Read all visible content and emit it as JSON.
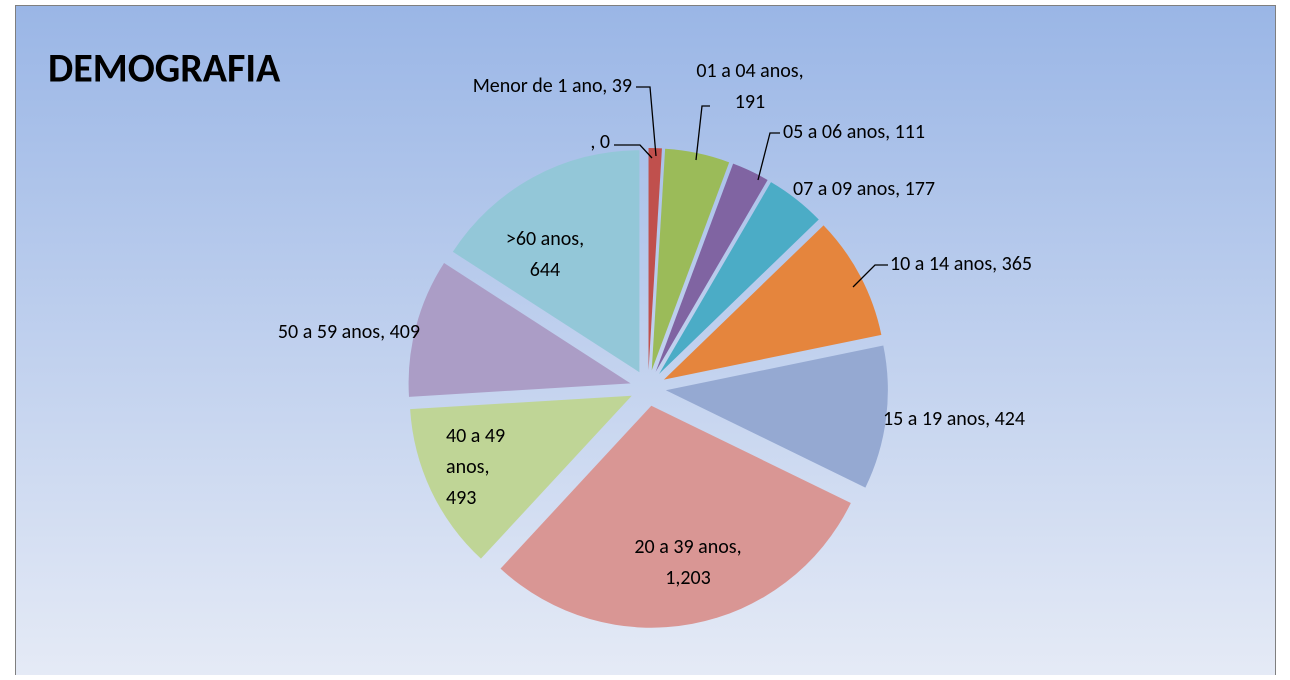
{
  "chart_data": {
    "type": "pie",
    "title": "DEMOGRAFIA",
    "categories": [
      null,
      "Menor de 1 ano",
      "01 a 04 anos",
      "05 a 06 anos",
      "07 a 09 anos",
      "10 a 14 anos",
      "15 a 19 anos",
      "20 a 39 anos",
      "40 a 49 anos",
      "50 a 59 anos",
      ">60 anos"
    ],
    "values": [
      0,
      39,
      191,
      111,
      177,
      365,
      424,
      1203,
      493,
      409,
      644
    ],
    "value_labels": [
      ", 0",
      "Menor de 1 ano, 39",
      "01 a 04 anos,\n191",
      "05 a 06 anos, 111",
      "07 a 09 anos, 177",
      "10 a 14 anos, 365",
      "15 a 19 anos, 424",
      "20 a 39 anos,\n1,203",
      "40 a 49\nanos,\n493",
      "50 a 59 anos, 409",
      ">60 anos,\n644"
    ],
    "colors": [
      "#4f81bd",
      "#c0504d",
      "#9bbb59",
      "#8064a2",
      "#4bacc6",
      "#e5853d",
      "#95a9d2",
      "#d99694",
      "#bfd596",
      "#ab9dc6",
      "#93c7d8"
    ]
  }
}
